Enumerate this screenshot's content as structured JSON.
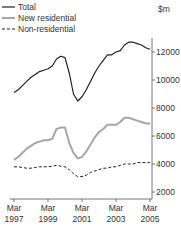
{
  "chart_data": {
    "type": "line",
    "y_label": "$m",
    "categories": [
      "Mar 1997",
      null,
      null,
      null,
      null,
      null,
      null,
      null,
      "Mar 1999",
      null,
      null,
      null,
      null,
      null,
      null,
      null,
      "Mar 2001",
      null,
      null,
      null,
      null,
      null,
      null,
      null,
      "Mar 2003",
      null,
      null,
      null,
      null,
      null,
      null,
      null,
      "Mar 2005"
    ],
    "series": [
      {
        "name": "Total",
        "color": "#222222",
        "line_style": "solid",
        "values": [
          9100,
          9300,
          9600,
          9900,
          10200,
          10400,
          10600,
          10700,
          10800,
          11000,
          11500,
          11700,
          11600,
          10500,
          9000,
          8500,
          8800,
          9300,
          9900,
          10500,
          11000,
          11400,
          11800,
          11800,
          12000,
          12100,
          12500,
          12700,
          12700,
          12600,
          12500,
          12300,
          12200
        ]
      },
      {
        "name": "New residential",
        "color": "#a6a6a6",
        "line_style": "solid",
        "values": [
          4300,
          4500,
          4800,
          5100,
          5300,
          5500,
          5600,
          5700,
          5700,
          5800,
          6500,
          6600,
          6600,
          5500,
          4800,
          4400,
          4500,
          4900,
          5400,
          5900,
          6300,
          6500,
          6800,
          6800,
          6800,
          7000,
          7300,
          7300,
          7200,
          7100,
          7000,
          6900,
          6900
        ]
      },
      {
        "name": "Non-residential",
        "color": "#222222",
        "line_style": "dashed",
        "values": [
          3800,
          3800,
          3750,
          3700,
          3700,
          3750,
          3800,
          3800,
          3800,
          3850,
          3900,
          3850,
          3800,
          3600,
          3300,
          3100,
          3100,
          3200,
          3400,
          3500,
          3600,
          3700,
          3700,
          3800,
          3800,
          3900,
          4000,
          4000,
          4000,
          4100,
          4100,
          4100,
          4100
        ]
      }
    ],
    "ylim": [
      1500,
      13000
    ],
    "yticks": [
      2000,
      4000,
      6000,
      8000,
      10000,
      12000
    ],
    "legend": "top-left",
    "grid": false
  }
}
